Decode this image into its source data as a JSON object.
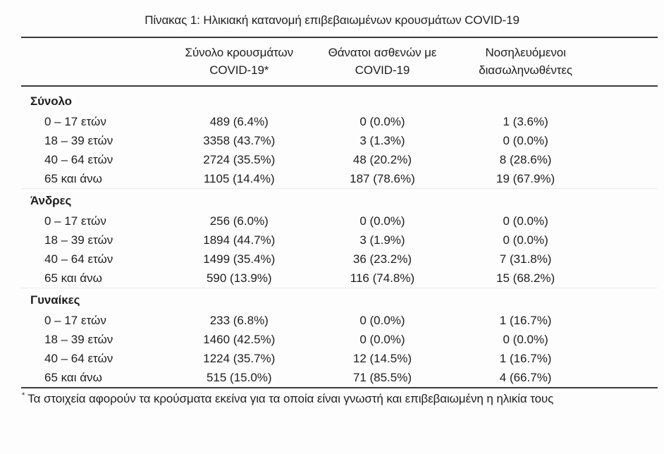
{
  "doc": {
    "title": "Πίνακας 1: Ηλικιακή κατανομή επιβεβαιωμένων κρουσμάτων COVID-19",
    "columns": [
      {
        "line1": "Σύνολο κρουσμάτων",
        "line2": "COVID-19*"
      },
      {
        "line1": "Θάνατοι ασθενών με",
        "line2": "COVID-19"
      },
      {
        "line1": "Νοσηλευόμενοι",
        "line2": "διασωληνωθέντες"
      }
    ],
    "sections": [
      {
        "label": "Σύνολο",
        "rows": [
          {
            "label": "0 – 17 ετών",
            "cells": [
              "489 (6.4%)",
              "0 (0.0%)",
              "1 (3.6%)"
            ]
          },
          {
            "label": "18 – 39 ετών",
            "cells": [
              "3358 (43.7%)",
              "3 (1.3%)",
              "0 (0.0%)"
            ]
          },
          {
            "label": "40 – 64 ετών",
            "cells": [
              "2724 (35.5%)",
              "48 (20.2%)",
              "8 (28.6%)"
            ]
          },
          {
            "label": "65 και άνω",
            "cells": [
              "1105 (14.4%)",
              "187 (78.6%)",
              "19 (67.9%)"
            ]
          }
        ]
      },
      {
        "label": "Άνδρες",
        "rows": [
          {
            "label": "0 – 17 ετών",
            "cells": [
              "256 (6.0%)",
              "0 (0.0%)",
              "0 (0.0%)"
            ]
          },
          {
            "label": "18 – 39 ετών",
            "cells": [
              "1894 (44.7%)",
              "3 (1.9%)",
              "0 (0.0%)"
            ]
          },
          {
            "label": "40 – 64 ετών",
            "cells": [
              "1499 (35.4%)",
              "36 (23.2%)",
              "7 (31.8%)"
            ]
          },
          {
            "label": "65 και άνω",
            "cells": [
              "590 (13.9%)",
              "116 (74.8%)",
              "15 (68.2%)"
            ]
          }
        ]
      },
      {
        "label": "Γυναίκες",
        "rows": [
          {
            "label": "0 – 17 ετών",
            "cells": [
              "233 (6.8%)",
              "0 (0.0%)",
              "1 (16.7%)"
            ]
          },
          {
            "label": "18 – 39 ετών",
            "cells": [
              "1460 (42.5%)",
              "0 (0.0%)",
              "0 (0.0%)"
            ]
          },
          {
            "label": "40 – 64 ετών",
            "cells": [
              "1224 (35.7%)",
              "12 (14.5%)",
              "1 (16.7%)"
            ]
          },
          {
            "label": "65 και άνω",
            "cells": [
              "515 (15.0%)",
              "71 (85.5%)",
              "4 (66.7%)"
            ]
          }
        ]
      }
    ],
    "footnote": {
      "marker": "*",
      "text": "Τα στοιχεία αφορούν τα κρούσματα εκείνα για τα οποία είναι γνωστή και επιβεβαιωμένη η ηλικία τους"
    },
    "colors": {
      "text": "#1e1e1e",
      "rule_dark": "#3b3b3b",
      "section_divider": "#ececec",
      "background": "#fdfdfd"
    }
  }
}
